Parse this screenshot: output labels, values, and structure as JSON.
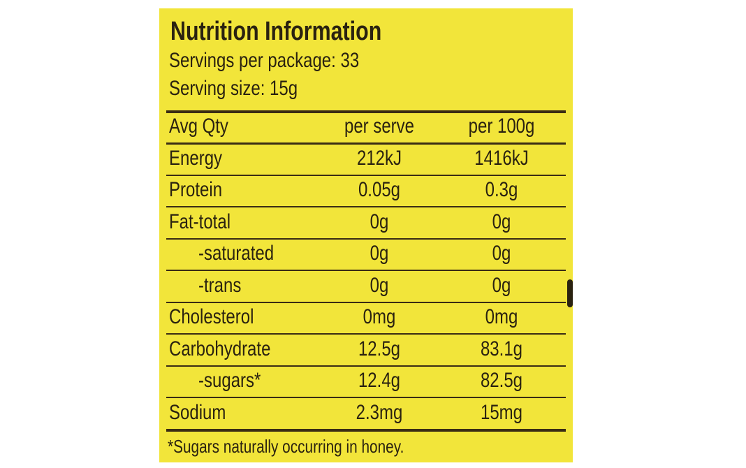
{
  "header": {
    "title": "Nutrition Information",
    "servings": "Servings per package: 33",
    "serving_size": "Serving size: 15g"
  },
  "table": {
    "columns": [
      "Avg Qty",
      "per serve",
      "per 100g"
    ],
    "rows": [
      [
        "Energy",
        "212kJ",
        "1416kJ"
      ],
      [
        "Protein",
        "0.05g",
        "0.3g"
      ],
      [
        "Fat-total",
        "0g",
        "0g"
      ],
      [
        "-saturated",
        "0g",
        "0g"
      ],
      [
        "-trans",
        "0g",
        "0g"
      ],
      [
        "Cholesterol",
        "0mg",
        "0mg"
      ],
      [
        "Carbohydrate",
        "12.5g",
        "83.1g"
      ],
      [
        "-sugars*",
        "12.4g",
        "82.5g"
      ],
      [
        "Sodium",
        "2.3mg",
        "15mg"
      ]
    ]
  },
  "footnote": "*Sugars naturally occurring in honey."
}
